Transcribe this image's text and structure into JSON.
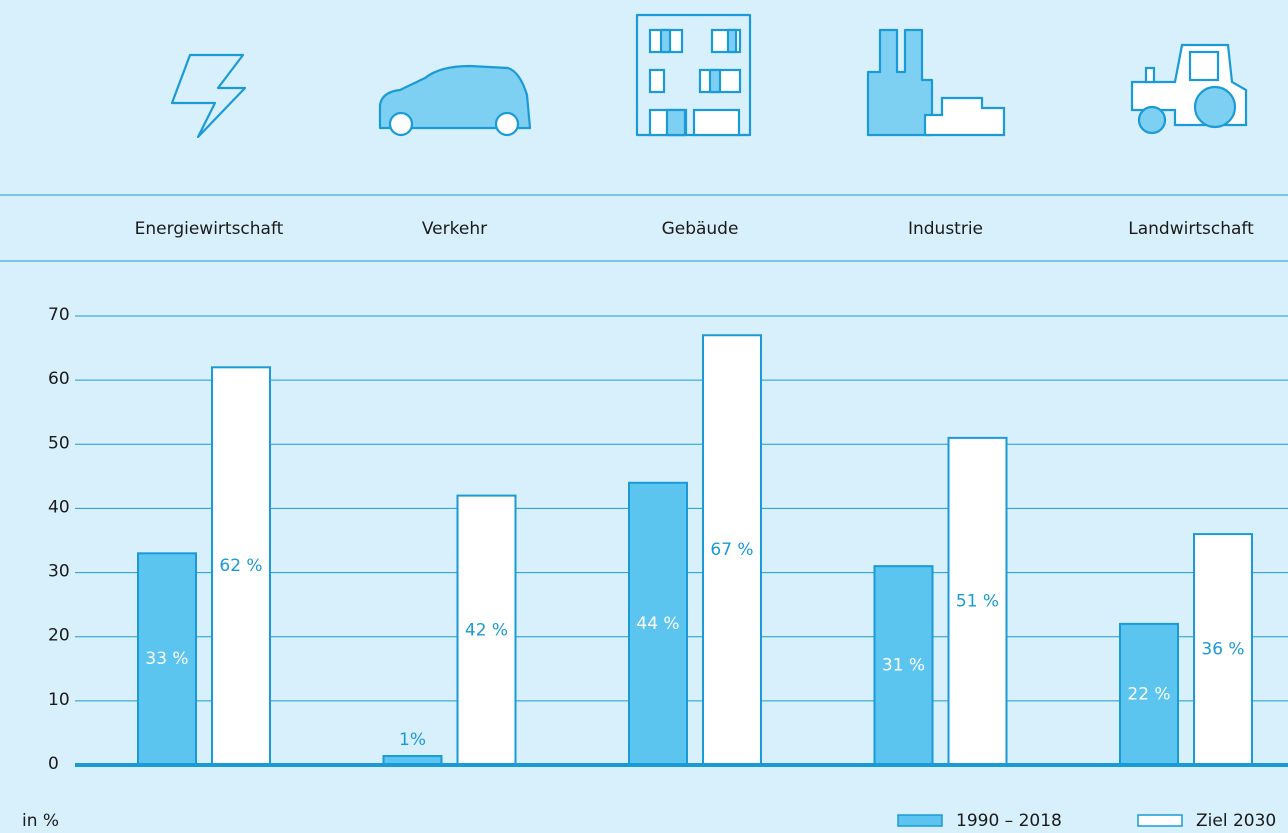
{
  "chart_data": {
    "type": "bar",
    "categories": [
      "Energiewirtschaft",
      "Verkehr",
      "Gebäude",
      "Industrie",
      "Landwirtschaft"
    ],
    "series": [
      {
        "name": "1990 – 2018",
        "color": "#5bc5f0",
        "values": [
          33,
          1.4,
          44,
          31,
          22
        ],
        "value_labels": [
          "33 %",
          "1%",
          "44 %",
          "31 %",
          "22 %"
        ]
      },
      {
        "name": "Ziel 2030",
        "color": "#ffffff",
        "values": [
          62,
          42,
          67,
          51,
          36
        ],
        "value_labels": [
          "62 %",
          "42 %",
          "67 %",
          "51 %",
          "36 %"
        ]
      }
    ],
    "y_axis_label": "in %",
    "ylim": [
      0,
      70
    ],
    "yticks": [
      0,
      10,
      20,
      30,
      40,
      50,
      60,
      70
    ],
    "grid": true,
    "legend": "bottom-right"
  }
}
